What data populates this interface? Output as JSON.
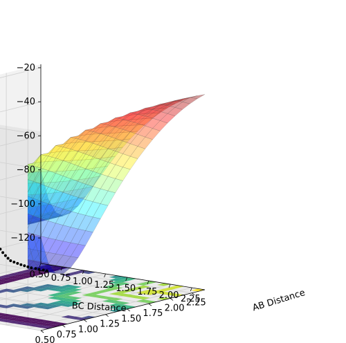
{
  "chart_data": {
    "type": "surface3d",
    "title": "",
    "xlabel": "BC Distance",
    "ylabel": "AB Distance",
    "zlabel": "",
    "x_ticks": [
      "0.50",
      "0.75",
      "1.00",
      "1.25",
      "1.50",
      "1.75",
      "2.00",
      "2.25"
    ],
    "y_ticks": [
      "0.50",
      "0.75",
      "1.00",
      "1.25",
      "1.50",
      "1.75",
      "2.00",
      "2.25"
    ],
    "z_ticks": [
      "−20",
      "−40",
      "−60",
      "−80",
      "−100",
      "−120"
    ],
    "xlim": [
      0.5,
      2.4
    ],
    "ylim": [
      0.5,
      2.4
    ],
    "zlim": [
      -135,
      -18
    ],
    "surface": {
      "colormap": "jet",
      "alpha": 0.4,
      "z_min": -105,
      "z_max": -20,
      "well_depth": -105,
      "saddle_height": -100,
      "plateau_high": -20
    },
    "contours": {
      "colormap": "viridis",
      "levels": 14,
      "projected_at_z": -135
    },
    "trajectory": {
      "marker_color": "#000000",
      "points_bc_ab": [
        [
          0.55,
          1.4
        ],
        [
          0.6,
          1.38
        ],
        [
          0.65,
          1.36
        ],
        [
          0.7,
          1.35
        ],
        [
          0.75,
          1.33
        ],
        [
          0.8,
          1.31
        ],
        [
          0.85,
          1.28
        ],
        [
          0.9,
          1.26
        ],
        [
          0.95,
          1.23
        ],
        [
          1.0,
          1.2
        ],
        [
          1.05,
          1.17
        ],
        [
          1.1,
          1.14
        ],
        [
          1.15,
          1.11
        ],
        [
          1.2,
          1.08
        ],
        [
          1.25,
          1.05
        ],
        [
          1.3,
          1.02
        ],
        [
          1.35,
          0.99
        ],
        [
          1.4,
          0.96
        ],
        [
          1.45,
          0.93
        ],
        [
          1.5,
          0.9
        ],
        [
          1.55,
          0.88
        ],
        [
          1.6,
          0.86
        ],
        [
          1.65,
          0.84
        ],
        [
          1.7,
          0.82
        ],
        [
          1.75,
          0.8
        ],
        [
          1.8,
          0.79
        ],
        [
          1.85,
          0.78
        ],
        [
          1.9,
          0.77
        ],
        [
          1.95,
          0.76
        ],
        [
          2.0,
          0.75
        ],
        [
          2.05,
          0.74
        ],
        [
          2.1,
          0.74
        ],
        [
          2.15,
          0.73
        ],
        [
          2.2,
          0.73
        ],
        [
          2.25,
          0.72
        ]
      ]
    }
  }
}
